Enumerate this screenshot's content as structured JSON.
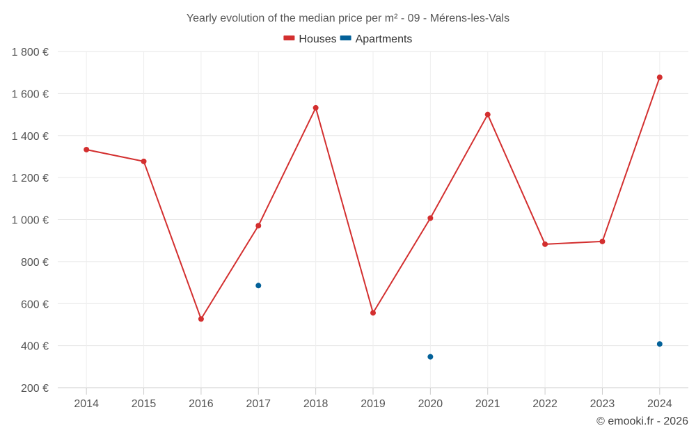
{
  "chart_data": {
    "type": "line",
    "title": "Yearly evolution of the median price per m² - 09 - Mérens-les-Vals",
    "credit": "© emooki.fr - 2026",
    "categories": [
      "2014",
      "2015",
      "2016",
      "2017",
      "2018",
      "2019",
      "2020",
      "2021",
      "2022",
      "2023",
      "2024"
    ],
    "ylim": [
      200,
      1800
    ],
    "yticks": [
      {
        "value": 200,
        "label": "200 €"
      },
      {
        "value": 400,
        "label": "400 €"
      },
      {
        "value": 600,
        "label": "600 €"
      },
      {
        "value": 800,
        "label": "800 €"
      },
      {
        "value": 1000,
        "label": "1 000 €"
      },
      {
        "value": 1200,
        "label": "1 200 €"
      },
      {
        "value": 1400,
        "label": "1 400 €"
      },
      {
        "value": 1600,
        "label": "1 600 €"
      },
      {
        "value": 1800,
        "label": "1 800 €"
      }
    ],
    "series": [
      {
        "name": "Houses",
        "color": "#d32f2f",
        "values": [
          1333,
          1277,
          527,
          971,
          1532,
          556,
          1007,
          1500,
          883,
          896,
          1677
        ]
      },
      {
        "name": "Apartments",
        "color": "#036199",
        "values": [
          null,
          null,
          null,
          686,
          null,
          null,
          347,
          null,
          null,
          null,
          408
        ]
      }
    ]
  }
}
